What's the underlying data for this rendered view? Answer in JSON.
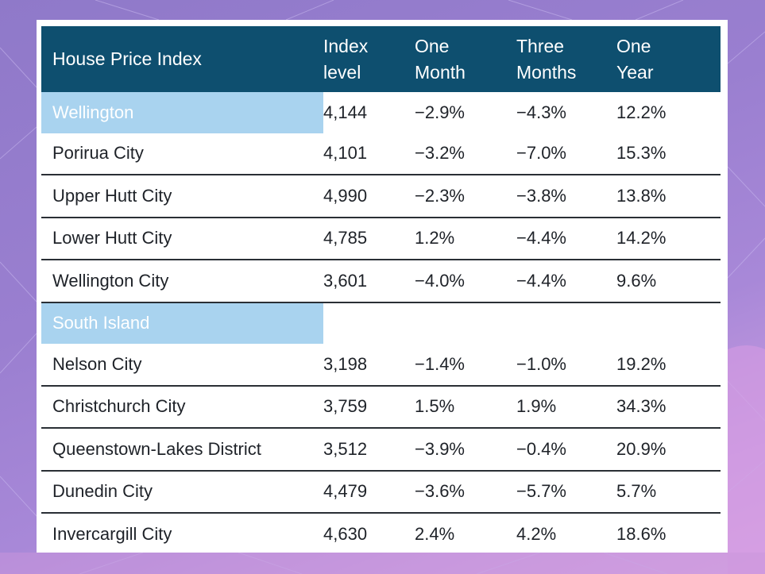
{
  "table": {
    "headers": [
      "House Price Index",
      "Index\nlevel",
      "One\nMonth",
      "Three\nMonths",
      "One\nYear"
    ],
    "rows": [
      {
        "name": "Wellington",
        "region": true,
        "values": [
          "4,144",
          "−2.9%",
          "−4.3%",
          "12.2%"
        ]
      },
      {
        "name": "Porirua City",
        "values": [
          "4,101",
          "−3.2%",
          "−7.0%",
          "15.3%"
        ]
      },
      {
        "name": "Upper Hutt City",
        "values": [
          "4,990",
          "−2.3%",
          "−3.8%",
          "13.8%"
        ]
      },
      {
        "name": "Lower Hutt City",
        "values": [
          "4,785",
          "1.2%",
          "−4.4%",
          "14.2%"
        ]
      },
      {
        "name": "Wellington City",
        "values": [
          "3,601",
          "−4.0%",
          "−4.4%",
          "9.6%"
        ]
      },
      {
        "name": "South Island",
        "region": true,
        "values": [
          "",
          "",
          "",
          ""
        ]
      },
      {
        "name": "Nelson City",
        "values": [
          "3,198",
          "−1.4%",
          "−1.0%",
          "19.2%"
        ]
      },
      {
        "name": "Christchurch City",
        "values": [
          "3,759",
          "1.5%",
          "1.9%",
          "34.3%"
        ]
      },
      {
        "name": "Queenstown-Lakes District",
        "values": [
          "3,512",
          "−3.9%",
          "−0.4%",
          "20.9%"
        ]
      },
      {
        "name": "Dunedin City",
        "values": [
          "4,479",
          "−3.6%",
          "−5.7%",
          "5.7%"
        ]
      },
      {
        "name": "Invercargill City",
        "values": [
          "4,630",
          "2.4%",
          "4.2%",
          "18.6%"
        ]
      }
    ]
  }
}
